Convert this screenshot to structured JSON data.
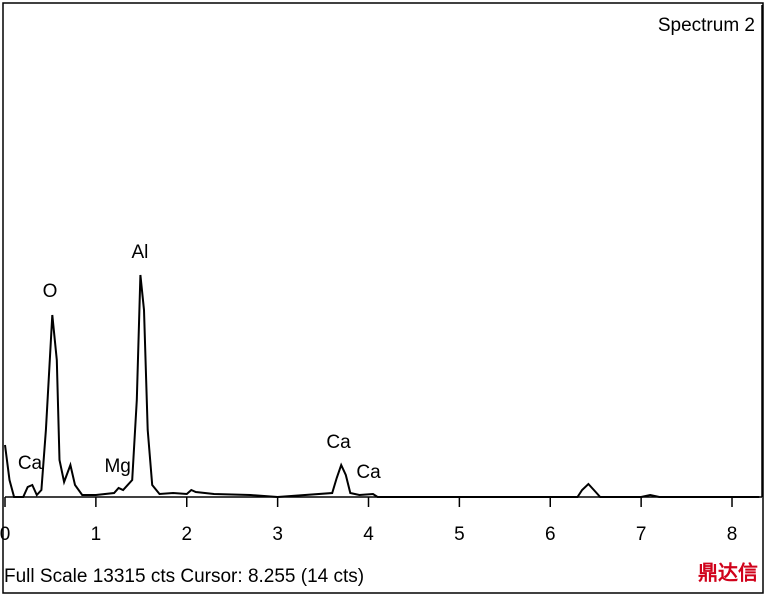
{
  "chart_data": {
    "type": "line",
    "title": "Spectrum 2",
    "footer": "Full Scale 13315 cts Cursor: 8.255  (14 cts)",
    "watermark": "鼎达信",
    "color": "#000000",
    "xlim": [
      0,
      8.33
    ],
    "xticks": [
      0,
      1,
      2,
      3,
      4,
      5,
      6,
      7,
      8
    ],
    "ylim": [
      0,
      13315
    ],
    "x": [
      0,
      0.05,
      0.1,
      0.2,
      0.25,
      0.3,
      0.35,
      0.4,
      0.45,
      0.52,
      0.57,
      0.6,
      0.65,
      0.72,
      0.77,
      0.85,
      1.0,
      1.2,
      1.25,
      1.3,
      1.4,
      1.45,
      1.49,
      1.53,
      1.57,
      1.62,
      1.7,
      1.85,
      2.0,
      2.05,
      2.1,
      2.3,
      2.7,
      3.0,
      3.6,
      3.65,
      3.7,
      3.75,
      3.8,
      3.9,
      4.05,
      4.1,
      6.3,
      6.35,
      6.42,
      6.5,
      6.55,
      7.0,
      7.1,
      7.2,
      8.3
    ],
    "values": [
      1407,
      460,
      0,
      0,
      271,
      325,
      54,
      189,
      1813,
      4925,
      3707,
      1001,
      406,
      866,
      325,
      54,
      54,
      108,
      244,
      189,
      460,
      2625,
      6007,
      5060,
      1813,
      325,
      81,
      108,
      81,
      189,
      135,
      81,
      54,
      0,
      108,
      514,
      866,
      595,
      108,
      54,
      81,
      0,
      0,
      189,
      352,
      135,
      0,
      0,
      54,
      0,
      0
    ],
    "annotations": [
      {
        "text": "O",
        "x": 0.495,
        "y": 5547
      },
      {
        "text": "Al",
        "x": 1.485,
        "y": 6602
      },
      {
        "text": "Ca",
        "x": 0.275,
        "y": 893
      },
      {
        "text": "Mg",
        "x": 1.24,
        "y": 812
      },
      {
        "text": "Ca",
        "x": 3.67,
        "y": 1461
      },
      {
        "text": "Ca",
        "x": 4.0,
        "y": 649
      }
    ]
  }
}
